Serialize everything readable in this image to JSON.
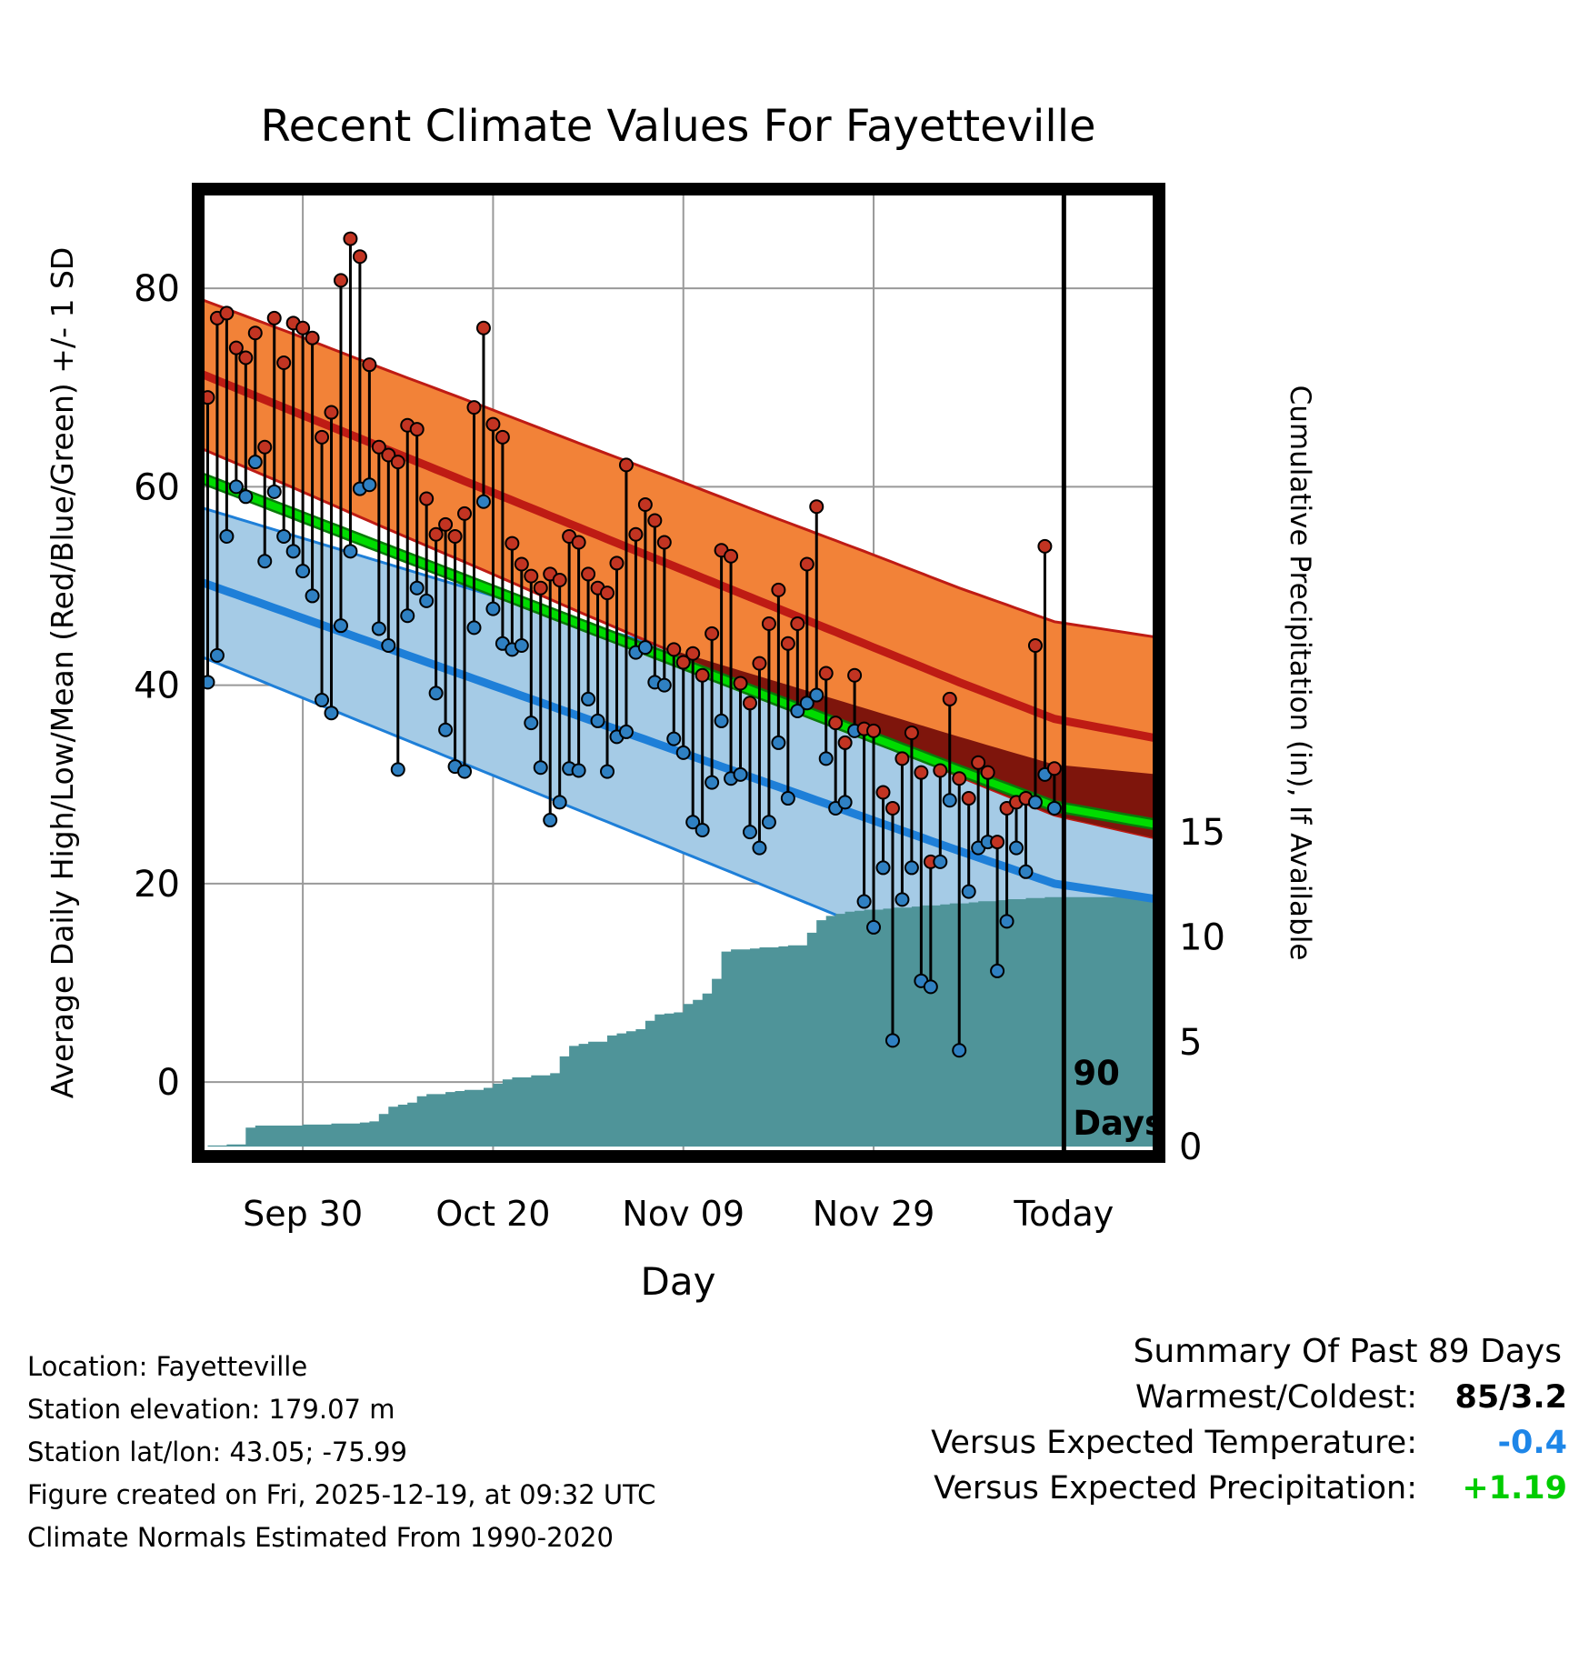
{
  "chart_data": {
    "type": "line",
    "title": "Recent Climate Values For Fayetteville",
    "xlabel": "Day",
    "ylabel_left": "Average Daily High/Low/Mean (Red/Blue/Green) +/- 1 SD",
    "ylabel_right": "Cumulative Precipitation (in), If Available",
    "x_range_days": [
      0,
      101
    ],
    "y_left_range": [
      -7.5,
      90
    ],
    "x_ticks": [
      {
        "day": 11,
        "label": "Sep 30"
      },
      {
        "day": 31,
        "label": "Oct 20"
      },
      {
        "day": 51,
        "label": "Nov 09"
      },
      {
        "day": 71,
        "label": "Nov 29"
      },
      {
        "day": 91,
        "label": "Today"
      }
    ],
    "y_left_ticks": [
      80,
      60,
      40,
      20,
      0
    ],
    "y_right_ticks": [
      15,
      10,
      5,
      0
    ],
    "precip_axis": {
      "temp_at_zero": -6.5,
      "temp_per_inch": 2.113
    },
    "today_day": 91,
    "annotation": [
      "90",
      "Days"
    ],
    "daily": {
      "first_day": 1,
      "high": [
        69,
        77,
        77.5,
        74,
        73,
        75.5,
        64,
        77,
        72.5,
        76.5,
        76,
        75,
        65,
        67.5,
        80.8,
        85,
        83.2,
        72.3,
        64,
        63.2,
        62.5,
        66.2,
        65.8,
        58.8,
        55.2,
        56.2,
        55,
        57.3,
        68,
        76,
        66.3,
        65,
        54.3,
        52.2,
        51,
        49.8,
        51.2,
        50.6,
        55,
        54.4,
        51.2,
        49.8,
        49.3,
        52.3,
        62.2,
        55.2,
        58.2,
        56.6,
        54.4,
        43.6,
        42.3,
        43.2,
        41,
        45.2,
        53.6,
        53,
        40.2,
        38.2,
        42.2,
        46.2,
        49.6,
        44.2,
        46.2,
        52.2,
        58,
        41.2,
        36.2,
        34.2,
        41,
        35.6,
        35.4,
        29.2,
        27.6,
        32.6,
        35.2,
        31.2,
        22.2,
        31.4,
        38.6,
        30.6,
        28.6,
        32.2,
        31.2,
        24.2,
        27.6,
        28.2,
        28.6,
        44,
        54,
        31.6
      ],
      "low": [
        40.3,
        43,
        55,
        60,
        59,
        62.5,
        52.5,
        59.5,
        55,
        53.5,
        51.5,
        49,
        38.5,
        37.2,
        46,
        53.5,
        59.8,
        60.2,
        45.7,
        44,
        31.5,
        47,
        49.8,
        48.5,
        39.2,
        35.5,
        31.8,
        31.3,
        45.8,
        58.5,
        47.7,
        44.2,
        43.6,
        44,
        36.2,
        31.7,
        26.4,
        28.2,
        31.6,
        31.4,
        38.6,
        36.4,
        31.3,
        34.8,
        35.3,
        43.3,
        43.8,
        40.3,
        40,
        34.6,
        33.2,
        26.2,
        25.4,
        30.2,
        36.4,
        30.6,
        31,
        25.2,
        23.6,
        26.2,
        34.2,
        28.6,
        37.4,
        38.2,
        39,
        32.6,
        27.6,
        28.2,
        35.4,
        18.2,
        15.6,
        21.6,
        4.2,
        18.4,
        21.6,
        10.2,
        9.6,
        22.2,
        28.4,
        3.2,
        19.2,
        23.6,
        24.2,
        11.2,
        16.2,
        23.6,
        21.2,
        28.2,
        31,
        27.6
      ],
      "cumulative_precip_in": [
        0.05,
        0.05,
        0.1,
        0.1,
        0.9,
        1,
        1,
        1,
        1,
        1,
        1.05,
        1.05,
        1.05,
        1.1,
        1.1,
        1.1,
        1.15,
        1.2,
        1.55,
        1.9,
        2,
        2.1,
        2.4,
        2.5,
        2.5,
        2.6,
        2.65,
        2.7,
        2.7,
        2.8,
        3,
        3.2,
        3.3,
        3.3,
        3.4,
        3.4,
        3.5,
        4.3,
        4.8,
        4.9,
        5,
        5,
        5.3,
        5.4,
        5.5,
        5.6,
        6,
        6.3,
        6.35,
        6.4,
        6.8,
        7,
        7.3,
        8,
        9.3,
        9.4,
        9.4,
        9.45,
        9.5,
        9.5,
        9.55,
        9.6,
        9.6,
        10.2,
        10.8,
        11,
        11.1,
        11.2,
        11.25,
        11.3,
        11.3,
        11.35,
        11.4,
        11.4,
        11.45,
        11.5,
        11.5,
        11.55,
        11.6,
        11.6,
        11.65,
        11.7,
        11.7,
        11.75,
        11.8,
        11.8,
        11.85,
        11.85,
        11.9,
        11.9
      ]
    },
    "normals": {
      "control_days": [
        0,
        10,
        20,
        30,
        40,
        50,
        60,
        70,
        80,
        90,
        101
      ],
      "high_mean": [
        71.5,
        67.6,
        63.7,
        59.8,
        55.9,
        52.0,
        48.1,
        44.2,
        40.3,
        36.6,
        34.6
      ],
      "high_upper": [
        79.0,
        75.4,
        71.7,
        68.1,
        64.4,
        60.8,
        57.1,
        53.5,
        49.8,
        46.4,
        44.8
      ],
      "high_lower": [
        64.0,
        59.9,
        55.7,
        51.6,
        47.4,
        43.3,
        39.1,
        35.0,
        30.8,
        26.9,
        24.5
      ],
      "mean": [
        61.0,
        57.3,
        53.6,
        49.9,
        46.2,
        42.5,
        38.8,
        35.1,
        31.4,
        27.8,
        25.9
      ],
      "low_mean": [
        50.5,
        47.1,
        43.7,
        40.3,
        36.9,
        33.5,
        30.1,
        26.7,
        23.3,
        20.0,
        18.4
      ],
      "low_upper": [
        58.0,
        55.1,
        52.2,
        49.3,
        46.4,
        43.5,
        40.6,
        37.7,
        34.8,
        32.0,
        31.0
      ],
      "low_lower": [
        43.0,
        39.1,
        35.2,
        31.3,
        27.4,
        23.5,
        19.6,
        15.7,
        11.8,
        8.0,
        5.8
      ]
    },
    "colors": {
      "high_band": "#F28238",
      "high_line": "#BE1B14",
      "overlap_band": "#7E150C",
      "mean_line": "#00DC00",
      "mean_line_edge": "#0A7A0A",
      "low_band": "#A5CBE6",
      "low_line": "#1E7FD8",
      "precip_area": "#4F9499",
      "high_dot": "#C23422",
      "low_dot": "#2F80C2",
      "stem": "#000000",
      "grid": "#999999",
      "today_line": "#000000",
      "border": "#000000"
    }
  },
  "footer": {
    "lines": [
      "Location: Fayetteville",
      "Station elevation: 179.07 m",
      "Station lat/lon: 43.05; -75.99",
      "Figure created on Fri, 2025-12-19, at 09:32 UTC",
      "Climate Normals Estimated From 1990-2020"
    ]
  },
  "summary": {
    "title": "Summary Of Past 89 Days",
    "rows": [
      {
        "label": "Warmest/Coldest:",
        "value": "85/3.2",
        "color": "#000000"
      },
      {
        "label": "Versus Expected Temperature:",
        "value": "-0.4",
        "color": "#1E86E8"
      },
      {
        "label": "Versus Expected Precipitation:",
        "value": "+1.19",
        "color": "#00CC00"
      }
    ]
  }
}
